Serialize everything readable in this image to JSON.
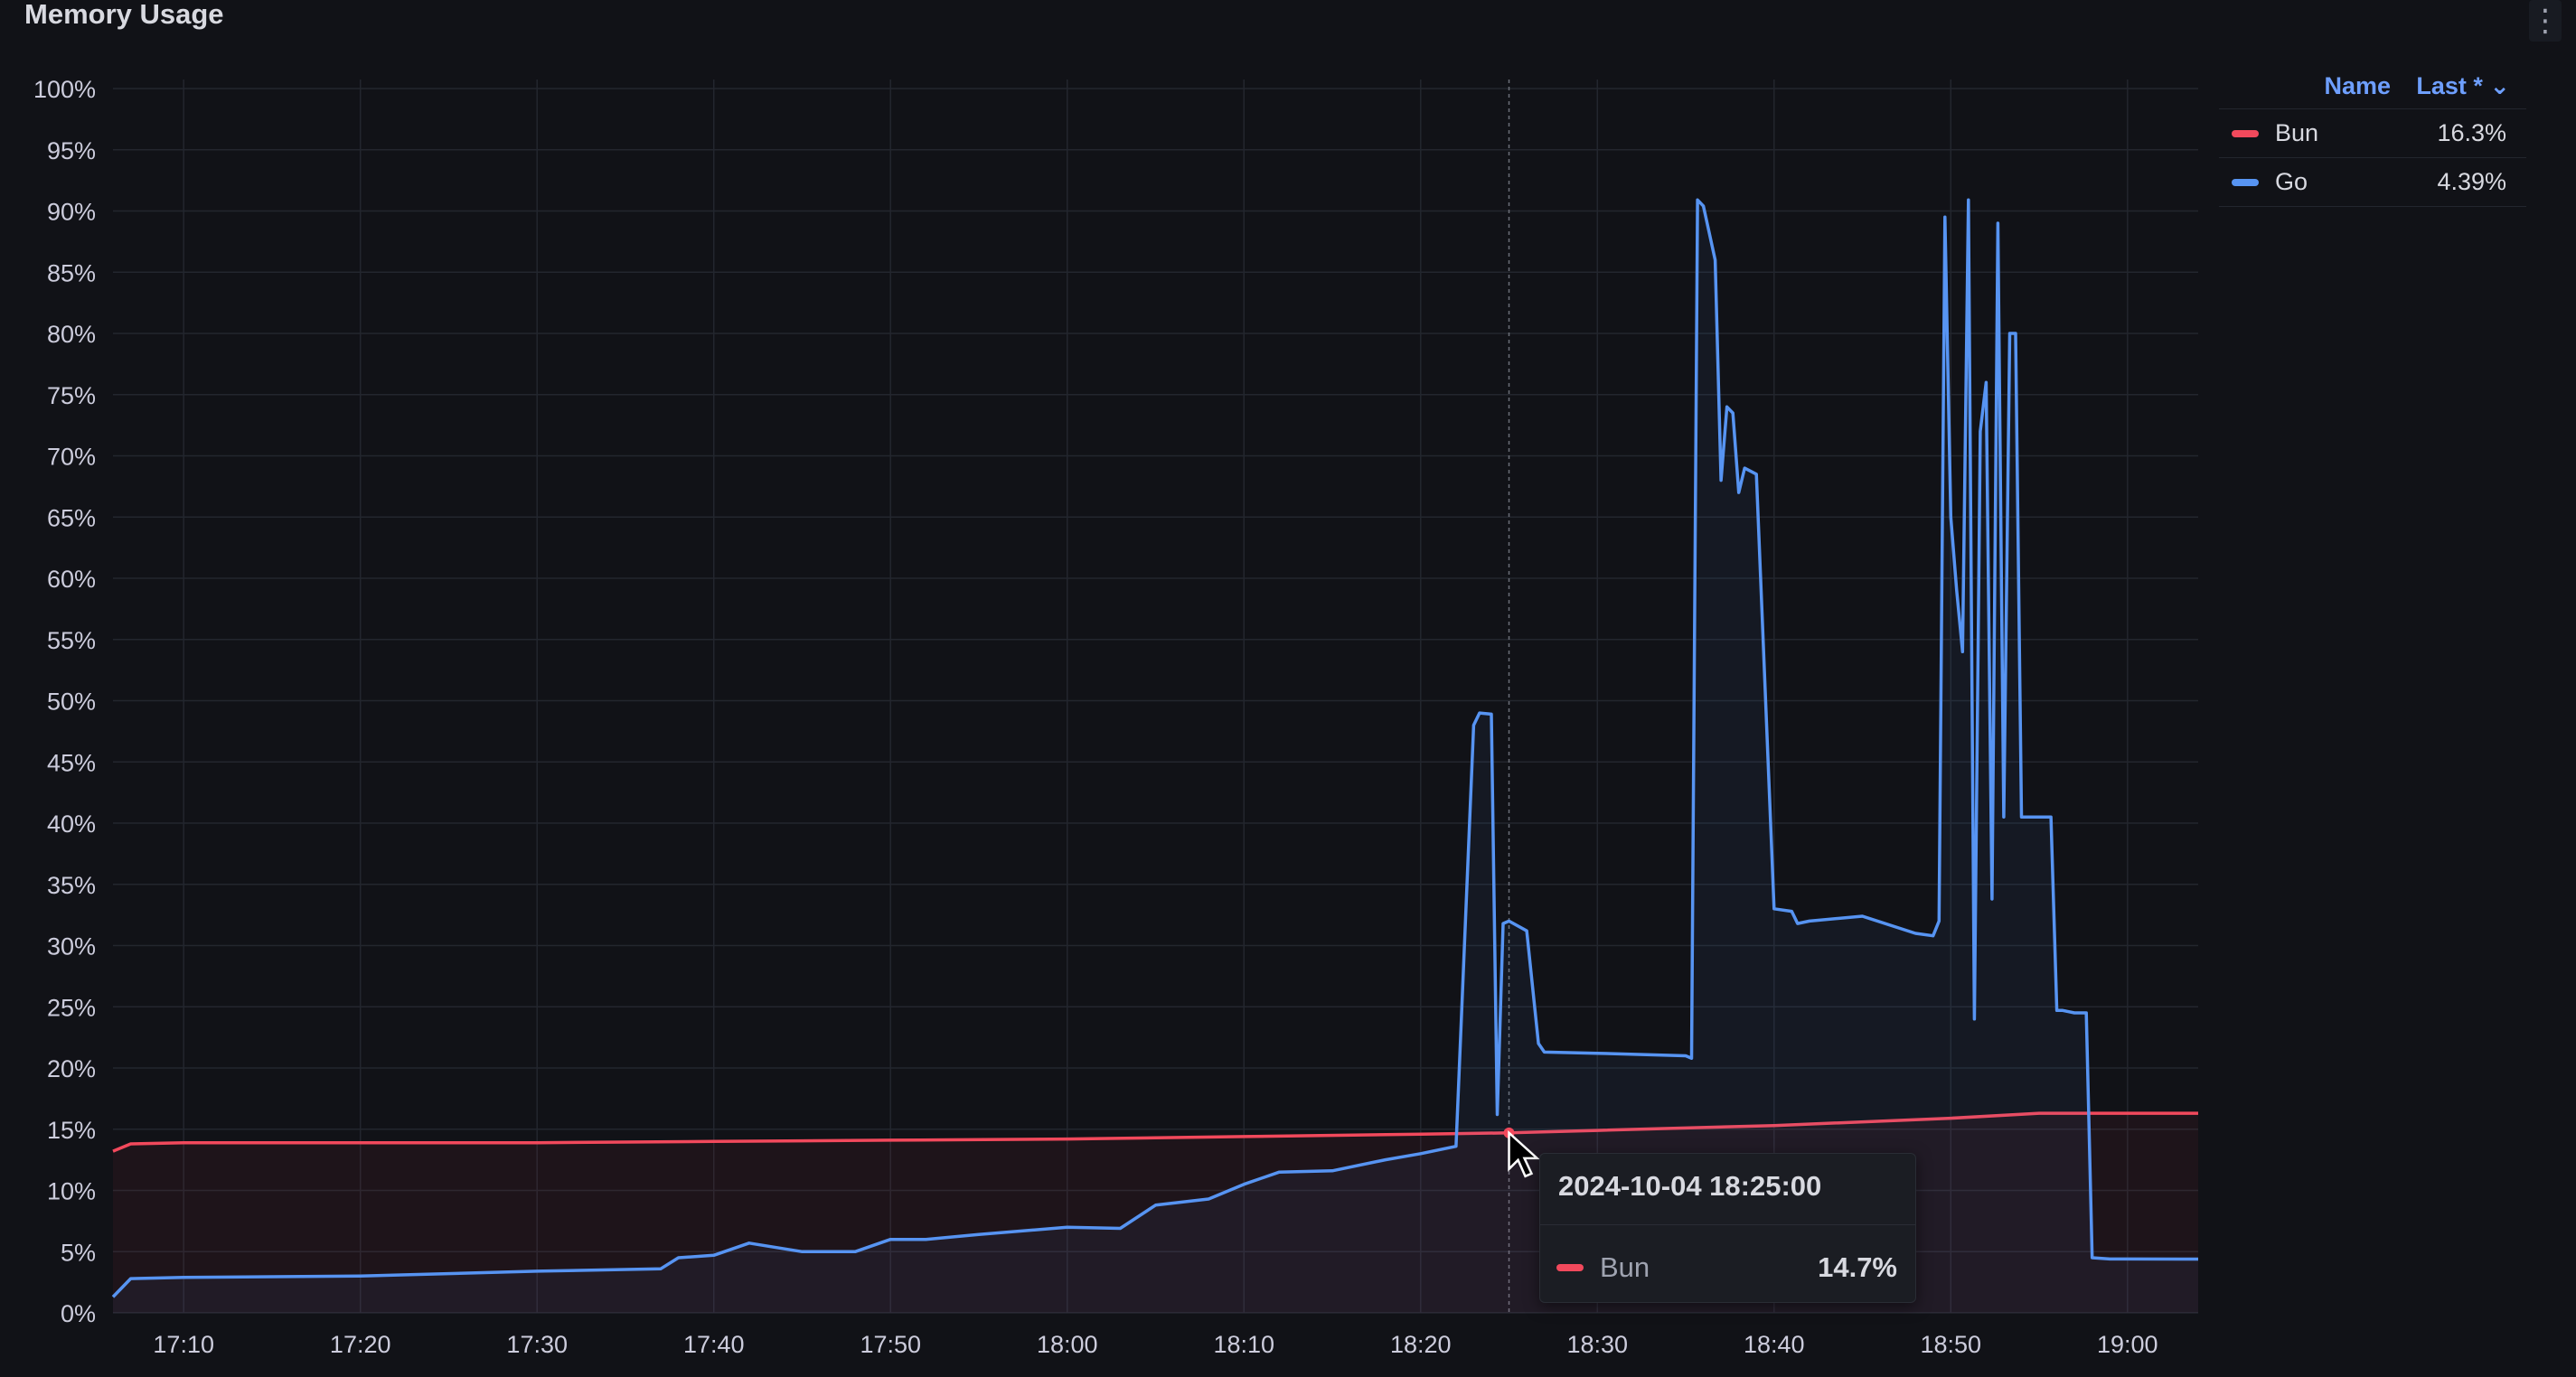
{
  "panel": {
    "title": "Memory Usage",
    "menu_icon": "kebab-menu-icon",
    "menu_glyph": "⋮"
  },
  "colors": {
    "background": "#111217",
    "grid": "#23262e",
    "bun": "#f2495c",
    "go": "#5794f2",
    "legend_header": "#6e9fff"
  },
  "legend": {
    "name_header": "Name",
    "last_header": "Last * ⌄",
    "items": [
      {
        "name": "Bun",
        "last": "16.3%",
        "color": "#f2495c"
      },
      {
        "name": "Go",
        "last": "4.39%",
        "color": "#5794f2"
      }
    ]
  },
  "tooltip": {
    "time": "2024-10-04 18:25:00",
    "series": "Bun",
    "value": "14.7%",
    "color": "#f2495c"
  },
  "chart_data": {
    "type": "line",
    "title": "Memory Usage",
    "xlabel": "",
    "ylabel": "",
    "xlim": [
      "17:06",
      "19:04"
    ],
    "ylim": [
      0,
      100
    ],
    "x_ticks": [
      "17:10",
      "17:20",
      "17:30",
      "17:40",
      "17:50",
      "18:00",
      "18:10",
      "18:20",
      "18:30",
      "18:40",
      "18:50",
      "19:00"
    ],
    "y_ticks": [
      "0%",
      "5%",
      "10%",
      "15%",
      "20%",
      "25%",
      "30%",
      "35%",
      "40%",
      "45%",
      "50%",
      "55%",
      "60%",
      "65%",
      "70%",
      "75%",
      "80%",
      "85%",
      "90%",
      "95%",
      "100%"
    ],
    "grid": true,
    "legend_position": "right",
    "hover_time": "18:25",
    "series": [
      {
        "name": "Bun",
        "color": "#f2495c",
        "x": [
          "17:06",
          "17:07",
          "17:10",
          "17:20",
          "17:30",
          "17:40",
          "17:50",
          "18:00",
          "18:10",
          "18:20",
          "18:25",
          "18:30",
          "18:40",
          "18:50",
          "18:55",
          "19:00",
          "19:04"
        ],
        "y": [
          13.2,
          13.8,
          13.9,
          13.9,
          13.9,
          14.0,
          14.1,
          14.2,
          14.4,
          14.6,
          14.7,
          14.9,
          15.3,
          15.9,
          16.3,
          16.3,
          16.3
        ]
      },
      {
        "name": "Go",
        "color": "#5794f2",
        "x": [
          "17:06",
          "17:07",
          "17:10",
          "17:20",
          "17:30",
          "17:37",
          "17:38",
          "17:40",
          "17:42",
          "17:45",
          "17:48",
          "17:50",
          "17:52",
          "17:55",
          "18:00",
          "18:03",
          "18:05",
          "18:08",
          "18:10",
          "18:12",
          "18:15",
          "18:18",
          "18:20",
          "18:22",
          "18:23",
          "18:23:20",
          "18:24",
          "18:24:20",
          "18:24:40",
          "18:25",
          "18:26",
          "18:26:40",
          "18:27",
          "18:30",
          "18:35",
          "18:35:20",
          "18:35:40",
          "18:36",
          "18:36:40",
          "18:37",
          "18:37:20",
          "18:37:40",
          "18:38",
          "18:38:20",
          "18:39",
          "18:40",
          "18:41",
          "18:41:20",
          "18:42",
          "18:45",
          "18:48",
          "18:49",
          "18:49:20",
          "18:49:40",
          "18:50",
          "18:50:20",
          "18:50:40",
          "18:51",
          "18:51:20",
          "18:51:40",
          "18:52",
          "18:52:20",
          "18:52:40",
          "18:53",
          "18:53:20",
          "18:53:40",
          "18:54",
          "18:54:20",
          "18:54:40",
          "18:55",
          "18:55:20",
          "18:55:40",
          "18:56",
          "18:56:20",
          "18:57",
          "18:57:40",
          "18:58",
          "18:59",
          "18:59:40",
          "19:00",
          "19:04"
        ],
        "y": [
          1.3,
          2.8,
          2.9,
          3.0,
          3.4,
          3.6,
          4.5,
          4.7,
          5.7,
          5.0,
          5.0,
          6.0,
          6.0,
          6.4,
          7.0,
          6.9,
          8.8,
          9.3,
          10.5,
          11.5,
          11.6,
          12.5,
          13.0,
          13.6,
          48.0,
          49.0,
          48.9,
          16.2,
          31.8,
          32.0,
          31.2,
          22.0,
          21.3,
          21.2,
          21.0,
          20.8,
          90.9,
          90.4,
          86.0,
          68.0,
          74.0,
          73.5,
          67.0,
          69.0,
          68.5,
          33.0,
          32.8,
          31.8,
          32.0,
          32.4,
          31.0,
          30.8,
          32.0,
          89.5,
          65.0,
          59.0,
          54.0,
          90.9,
          24.0,
          72.0,
          76.0,
          33.8,
          89.0,
          40.5,
          80.0,
          80.0,
          40.5,
          40.5,
          40.5,
          40.5,
          40.5,
          40.5,
          24.7,
          24.7,
          24.5,
          24.5,
          4.5,
          4.4,
          4.4,
          4.4,
          4.39
        ]
      }
    ]
  }
}
